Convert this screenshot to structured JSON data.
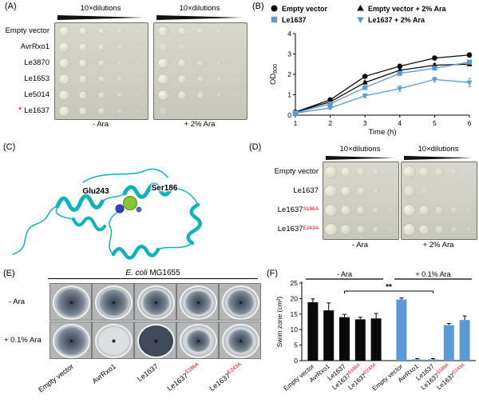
{
  "colors": {
    "blue": "#5b9bd5",
    "black": "#0a0a0a",
    "red": "#e8000d",
    "cyan": "#0db3bc"
  },
  "panel_a": {
    "label": "(A)",
    "dilution_header": "10×dilutions",
    "marker": "*",
    "rows": [
      {
        "base": "Empty vector"
      },
      {
        "base": "AvrRxo1"
      },
      {
        "base": "Le3870"
      },
      {
        "base": "Le1653"
      },
      {
        "base": "Le5014"
      },
      {
        "base": "Le1637",
        "marked": true
      }
    ],
    "blocks": [
      {
        "caption": "- Ara",
        "spots": [
          [
            1,
            0.9,
            0.75,
            0.55,
            0.35
          ],
          [
            1,
            0.85,
            0.7,
            0.5,
            0.3
          ],
          [
            1,
            0.9,
            0.7,
            0.45,
            0.3
          ],
          [
            1,
            0.85,
            0.65,
            0.5,
            0.3
          ],
          [
            1,
            0.9,
            0.7,
            0.5,
            0.35
          ],
          [
            1,
            0.85,
            0.7,
            0.45,
            0.3
          ]
        ]
      },
      {
        "caption": "+ 2% Ara",
        "spots": [
          [
            1,
            0.85,
            0.65,
            0.45,
            0.25
          ],
          [
            0.45,
            0.15,
            0,
            0,
            0
          ],
          [
            1,
            0.85,
            0.6,
            0.4,
            0.25
          ],
          [
            1,
            0.8,
            0.6,
            0.4,
            0.2
          ],
          [
            1,
            0.85,
            0.65,
            0.4,
            0.25
          ],
          [
            0.3,
            0,
            0,
            0,
            0
          ]
        ]
      }
    ]
  },
  "panel_b": {
    "label": "(B)"
  },
  "panel_c": {
    "label": "(C)",
    "residues": [
      "Glu243",
      "Ser186"
    ]
  },
  "panel_d": {
    "label": "(D)",
    "dilution_header": "10×dilutions",
    "rows": [
      {
        "base": "Empty vector"
      },
      {
        "base": "Le1637"
      },
      {
        "base": "Le1637",
        "sup": "S186A"
      },
      {
        "base": "Le1637",
        "sup": "E243A"
      }
    ],
    "blocks": [
      {
        "caption": "- Ara",
        "spots": [
          [
            1,
            0.9,
            0.7,
            0.5,
            0.3
          ],
          [
            1,
            0.85,
            0.65,
            0.45,
            0.3
          ],
          [
            1,
            0.9,
            0.7,
            0.5,
            0.3
          ],
          [
            1,
            0.85,
            0.7,
            0.5,
            0.3
          ]
        ]
      },
      {
        "caption": "+ 2% Ara",
        "spots": [
          [
            1,
            0.85,
            0.65,
            0.45,
            0.25
          ],
          [
            0.75,
            0.3,
            0,
            0,
            0
          ],
          [
            1,
            0.85,
            0.6,
            0.4,
            0.25
          ],
          [
            1,
            0.85,
            0.65,
            0.45,
            0.25
          ]
        ]
      }
    ]
  },
  "panel_e": {
    "label": "(E)",
    "title_italic": "E. coli",
    "title_rest": " MG1655",
    "row_labels": [
      "- Ara",
      "+ 0.1% Ara"
    ],
    "col_labels": [
      {
        "base": "Empty vector"
      },
      {
        "base": "AvrRxo1"
      },
      {
        "base": "Le1637"
      },
      {
        "base": "Le1637",
        "sup": "S186A"
      },
      {
        "base": "Le1637",
        "sup": "E243A"
      }
    ],
    "halos": [
      [
        0.95,
        0.88,
        0.82,
        0.79,
        0.8
      ],
      [
        0.95,
        0.14,
        0.12,
        0.72,
        0.78
      ]
    ],
    "shades": [
      [
        "m",
        "m",
        "m",
        "m",
        "m"
      ],
      [
        "m",
        "l",
        "d",
        "m",
        "m"
      ]
    ]
  },
  "panel_f": {
    "label": "(F)"
  },
  "chart_data": [
    {
      "id": "growth",
      "type": "line",
      "xlabel": "Time (h)",
      "ylabel_base": "OD",
      "ylabel_sub": "600",
      "xlim": [
        1,
        6
      ],
      "ylim": [
        0,
        4
      ],
      "xticks": [
        1,
        2,
        3,
        4,
        5,
        6
      ],
      "yticks": [
        0,
        1,
        2,
        3,
        4
      ],
      "x": [
        1,
        2,
        3,
        4,
        5,
        6
      ],
      "legend_position": "top",
      "series": [
        {
          "name": "Empty vector",
          "color": "#0a0a0a",
          "marker": "circle",
          "values": [
            0.15,
            0.75,
            1.9,
            2.4,
            2.8,
            2.95
          ],
          "errors": [
            0.03,
            0.05,
            0.08,
            0.08,
            0.08,
            0.1
          ]
        },
        {
          "name": "Empty vector + 2% Ara",
          "color": "#0a0a0a",
          "marker": "triangle-up",
          "values": [
            0.15,
            0.65,
            1.6,
            2.2,
            2.45,
            2.5
          ],
          "errors": [
            0.03,
            0.05,
            0.08,
            0.08,
            0.08,
            0.08
          ]
        },
        {
          "name": "Le1637",
          "color": "#5b9bd5",
          "marker": "square",
          "values": [
            0.12,
            0.55,
            1.35,
            2.05,
            2.3,
            2.6
          ],
          "errors": [
            0.03,
            0.05,
            0.08,
            0.1,
            0.08,
            0.1
          ]
        },
        {
          "name": "Le1637 + 2% Ara",
          "color": "#5b9bd5",
          "marker": "triangle-down",
          "values": [
            0.1,
            0.35,
            0.95,
            1.3,
            1.75,
            1.6
          ],
          "errors": [
            0.03,
            0.05,
            0.1,
            0.15,
            0.12,
            0.2
          ]
        }
      ]
    },
    {
      "id": "swim",
      "type": "bar",
      "ylabel": "Swim zone (cm²)",
      "ylim": [
        0,
        25
      ],
      "yticks": [
        0,
        5,
        10,
        15,
        20,
        25
      ],
      "groups": [
        {
          "label": "- Ara",
          "color": "#0a0a0a"
        },
        {
          "label": "+ 0.1% Ara",
          "color": "#5b9bd5"
        }
      ],
      "categories": [
        {
          "base": "Empty vector",
          "group": 0
        },
        {
          "base": "AvrRxo1",
          "group": 0
        },
        {
          "base": "Le1637",
          "group": 0
        },
        {
          "base": "Le1637",
          "sup": "S186A",
          "group": 0
        },
        {
          "base": "Le1637",
          "sup": "E243A",
          "group": 0
        },
        {
          "base": "Empty vector",
          "group": 1
        },
        {
          "base": "AvrRxo1",
          "group": 1
        },
        {
          "base": "Le1637",
          "group": 1
        },
        {
          "base": "Le1637",
          "sup": "S186A",
          "group": 1
        },
        {
          "base": "Le1637",
          "sup": "E243A",
          "group": 1
        }
      ],
      "values": [
        18.8,
        16.2,
        14.0,
        13.3,
        13.6,
        19.7,
        0.4,
        0.4,
        11.4,
        13.1
      ],
      "errors": [
        1.1,
        2.4,
        0.9,
        0.7,
        1.6,
        0.5,
        0.25,
        0.25,
        0.6,
        1.3
      ],
      "significance": {
        "label": "**",
        "from": 2,
        "to": 7
      }
    }
  ]
}
